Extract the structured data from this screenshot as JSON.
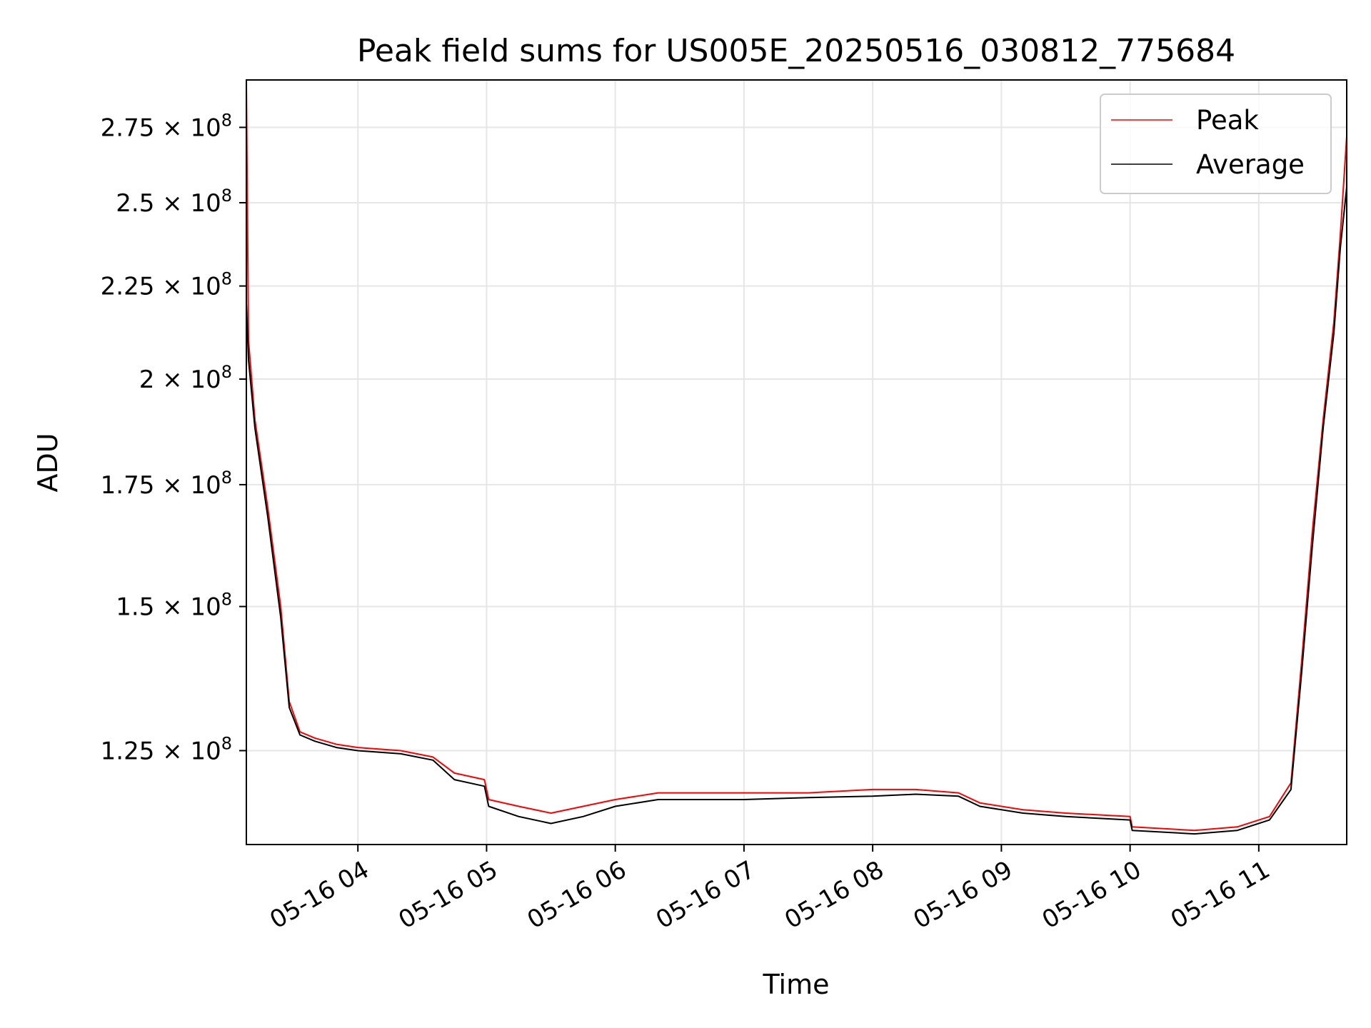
{
  "chart_data": {
    "type": "line",
    "title": "Peak field sums for US005E_20250516_030812_775684",
    "xlabel": "Time",
    "ylabel": "ADU",
    "y_scale": "log",
    "grid": true,
    "legend_position": "top-right",
    "xlim": [
      "2025-05-16 03:08",
      "2025-05-16 11:41"
    ],
    "ylim": [
      111000000,
      292000000
    ],
    "x_ticks": [
      {
        "t": "2025-05-16 04:00",
        "label": "05-16 04"
      },
      {
        "t": "2025-05-16 05:00",
        "label": "05-16 05"
      },
      {
        "t": "2025-05-16 06:00",
        "label": "05-16 06"
      },
      {
        "t": "2025-05-16 07:00",
        "label": "05-16 07"
      },
      {
        "t": "2025-05-16 08:00",
        "label": "05-16 08"
      },
      {
        "t": "2025-05-16 09:00",
        "label": "05-16 09"
      },
      {
        "t": "2025-05-16 10:00",
        "label": "05-16 10"
      },
      {
        "t": "2025-05-16 11:00",
        "label": "05-16 11"
      }
    ],
    "y_ticks": [
      {
        "value": 125000000,
        "mantissa": "1.25"
      },
      {
        "value": 150000000,
        "mantissa": "1.5"
      },
      {
        "value": 175000000,
        "mantissa": "1.75"
      },
      {
        "value": 200000000,
        "mantissa": "2"
      },
      {
        "value": 225000000,
        "mantissa": "2.25"
      },
      {
        "value": 250000000,
        "mantissa": "2.5"
      },
      {
        "value": 275000000,
        "mantissa": "2.75"
      }
    ],
    "series": [
      {
        "name": "Peak",
        "color": "#ff0000",
        "x": [
          "2025-05-16 03:08",
          "2025-05-16 03:09",
          "2025-05-16 03:12",
          "2025-05-16 03:18",
          "2025-05-16 03:24",
          "2025-05-16 03:28",
          "2025-05-16 03:33",
          "2025-05-16 03:40",
          "2025-05-16 03:50",
          "2025-05-16 04:00",
          "2025-05-16 04:20",
          "2025-05-16 04:35",
          "2025-05-16 04:45",
          "2025-05-16 04:59",
          "2025-05-16 05:01",
          "2025-05-16 05:15",
          "2025-05-16 05:30",
          "2025-05-16 05:45",
          "2025-05-16 06:00",
          "2025-05-16 06:20",
          "2025-05-16 06:40",
          "2025-05-16 07:00",
          "2025-05-16 07:30",
          "2025-05-16 08:00",
          "2025-05-16 08:20",
          "2025-05-16 08:40",
          "2025-05-16 08:50",
          "2025-05-16 09:10",
          "2025-05-16 09:30",
          "2025-05-16 10:00",
          "2025-05-16 10:01",
          "2025-05-16 10:30",
          "2025-05-16 10:50",
          "2025-05-16 11:05",
          "2025-05-16 11:15",
          "2025-05-16 11:20",
          "2025-05-16 11:25",
          "2025-05-16 11:30",
          "2025-05-16 11:35",
          "2025-05-16 11:38",
          "2025-05-16 11:41"
        ],
        "values": [
          292000000,
          210000000,
          190000000,
          170000000,
          150000000,
          133000000,
          128000000,
          127000000,
          126000000,
          125500000,
          125000000,
          124000000,
          121500000,
          120500000,
          117500000,
          116500000,
          115500000,
          116500000,
          117500000,
          118500000,
          118500000,
          118500000,
          118500000,
          119000000,
          119000000,
          118500000,
          117000000,
          116000000,
          115500000,
          115000000,
          113500000,
          113000000,
          113500000,
          115000000,
          120000000,
          140000000,
          165000000,
          190000000,
          215000000,
          240000000,
          272000000
        ]
      },
      {
        "name": "Average",
        "color": "#000000",
        "x": [
          "2025-05-16 03:08",
          "2025-05-16 03:09",
          "2025-05-16 03:12",
          "2025-05-16 03:18",
          "2025-05-16 03:24",
          "2025-05-16 03:28",
          "2025-05-16 03:33",
          "2025-05-16 03:40",
          "2025-05-16 03:50",
          "2025-05-16 04:00",
          "2025-05-16 04:20",
          "2025-05-16 04:35",
          "2025-05-16 04:45",
          "2025-05-16 04:59",
          "2025-05-16 05:01",
          "2025-05-16 05:15",
          "2025-05-16 05:30",
          "2025-05-16 05:45",
          "2025-05-16 06:00",
          "2025-05-16 06:20",
          "2025-05-16 06:40",
          "2025-05-16 07:00",
          "2025-05-16 07:30",
          "2025-05-16 08:00",
          "2025-05-16 08:20",
          "2025-05-16 08:40",
          "2025-05-16 08:50",
          "2025-05-16 09:10",
          "2025-05-16 09:30",
          "2025-05-16 10:00",
          "2025-05-16 10:01",
          "2025-05-16 10:30",
          "2025-05-16 10:50",
          "2025-05-16 11:05",
          "2025-05-16 11:15",
          "2025-05-16 11:20",
          "2025-05-16 11:25",
          "2025-05-16 11:30",
          "2025-05-16 11:35",
          "2025-05-16 11:38",
          "2025-05-16 11:41"
        ],
        "values": [
          220000000,
          205000000,
          188000000,
          168000000,
          148000000,
          132000000,
          127500000,
          126500000,
          125500000,
          125000000,
          124500000,
          123500000,
          120500000,
          119500000,
          116500000,
          115000000,
          114000000,
          115000000,
          116500000,
          117500000,
          117500000,
          117500000,
          117800000,
          118000000,
          118300000,
          118000000,
          116500000,
          115500000,
          115000000,
          114500000,
          113000000,
          112500000,
          113000000,
          114500000,
          119000000,
          138000000,
          162000000,
          188000000,
          212000000,
          236000000,
          255000000
        ]
      }
    ]
  }
}
